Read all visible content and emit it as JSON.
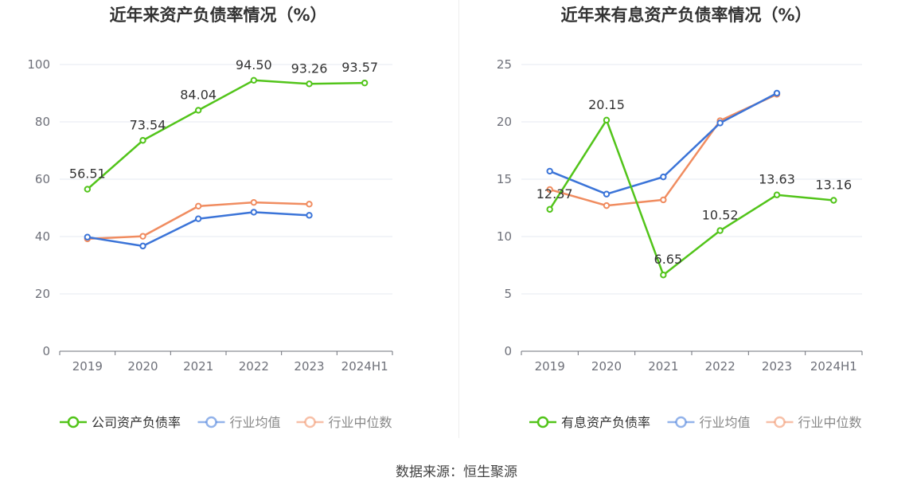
{
  "chart_data": [
    {
      "type": "line",
      "title": "近年来资产负债率情况（%）",
      "categories": [
        "2019",
        "2020",
        "2021",
        "2022",
        "2023",
        "2024H1"
      ],
      "ylim": [
        0,
        100
      ],
      "yticks": [
        0,
        20,
        40,
        60,
        80,
        100
      ],
      "grid": true,
      "legend_position": "bottom",
      "series": [
        {
          "name": "公司资产负债率",
          "color": "#52c41a",
          "labels": true,
          "values": [
            56.51,
            73.54,
            84.04,
            94.5,
            93.26,
            93.57
          ],
          "value_labels": [
            "56.51",
            "73.54",
            "84.04",
            "94.50",
            "93.26",
            "93.57"
          ]
        },
        {
          "name": "行业均值",
          "color": "#3b74d8",
          "labels": false,
          "values": [
            39.8,
            36.7,
            46.2,
            48.5,
            47.4,
            null
          ]
        },
        {
          "name": "行业中位数",
          "color": "#f08c60",
          "labels": false,
          "values": [
            39.2,
            40.1,
            50.6,
            51.9,
            51.3,
            null
          ]
        }
      ]
    },
    {
      "type": "line",
      "title": "近年来有息资产负债率情况（%）",
      "categories": [
        "2019",
        "2020",
        "2021",
        "2022",
        "2023",
        "2024H1"
      ],
      "ylim": [
        0,
        25
      ],
      "yticks": [
        0,
        5,
        10,
        15,
        20,
        25
      ],
      "grid": true,
      "legend_position": "bottom",
      "series": [
        {
          "name": "有息资产负债率",
          "color": "#52c41a",
          "labels": true,
          "values": [
            12.37,
            20.15,
            6.65,
            10.52,
            13.63,
            13.16
          ],
          "value_labels": [
            "12.37",
            "20.15",
            "6.65",
            "10.52",
            "13.63",
            "13.16"
          ]
        },
        {
          "name": "行业均值",
          "color": "#3b74d8",
          "labels": false,
          "values": [
            15.7,
            13.7,
            15.2,
            19.9,
            22.5,
            null
          ]
        },
        {
          "name": "行业中位数",
          "color": "#f08c60",
          "labels": false,
          "values": [
            14.1,
            12.7,
            13.2,
            20.1,
            22.4,
            null
          ]
        }
      ]
    }
  ],
  "footer": {
    "source": "数据来源：恒生聚源"
  }
}
